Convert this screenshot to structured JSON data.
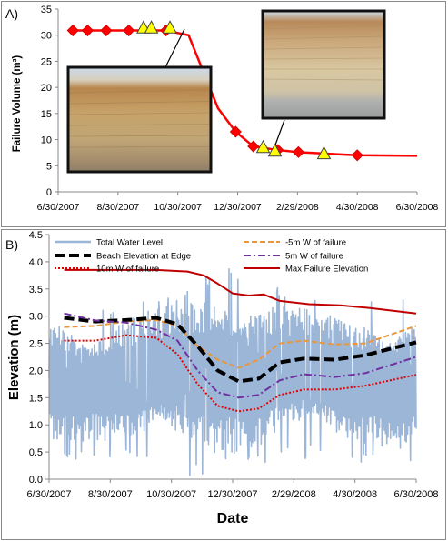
{
  "chart_data": [
    {
      "type": "line",
      "panel_label": "A)",
      "ylabel": "Failure Volume (m³)",
      "xlabel": "",
      "ylim": [
        0,
        35
      ],
      "yticks": [
        0,
        5,
        10,
        15,
        20,
        25,
        30,
        35
      ],
      "xlim": [
        "2007-06-30",
        "2008-06-30"
      ],
      "xticks": [
        "6/30/2007",
        "8/30/2007",
        "10/30/2007",
        "12/30/2007",
        "2/29/2008",
        "4/30/2008",
        "6/30/2008"
      ],
      "grid": false,
      "colors": {
        "line": "#ff0000",
        "diamond": "#ff0000",
        "triangle": "#ffff00",
        "triangle_edge": "#444444"
      },
      "series": [
        {
          "marker": "diamond",
          "x": [
            "2007-07-15",
            "2007-07-30",
            "2007-08-18",
            "2007-09-10",
            "2007-10-18",
            "2007-12-28",
            "2008-01-15",
            "2008-02-09",
            "2008-03-01",
            "2008-04-30"
          ],
          "y": [
            30.9,
            30.9,
            30.9,
            30.9,
            30.9,
            11.5,
            8.7,
            8.0,
            7.6,
            7.0
          ]
        },
        {
          "marker": "triangle",
          "x": [
            "2007-09-25",
            "2007-10-03",
            "2007-10-22",
            "2008-01-25",
            "2008-02-06",
            "2008-03-27"
          ],
          "y": [
            31.3,
            31.3,
            31.3,
            8.4,
            7.7,
            7.2
          ]
        },
        {
          "marker": "none",
          "x": [
            "2007-07-15",
            "2007-10-18",
            "2007-11-10",
            "2007-11-25",
            "2007-12-10",
            "2007-12-28",
            "2008-01-15",
            "2008-02-09",
            "2008-03-01",
            "2008-04-30",
            "2008-06-30"
          ],
          "y": [
            30.9,
            30.9,
            30.0,
            23.0,
            16.0,
            11.5,
            8.7,
            8.0,
            7.6,
            7.0,
            6.9
          ]
        }
      ]
    },
    {
      "type": "line",
      "panel_label": "B)",
      "ylabel": "Elevation (m)",
      "xlabel": "Date",
      "ylim": [
        0,
        4.5
      ],
      "yticks": [
        "0.0",
        "0.5",
        "1.0",
        "1.5",
        "2.0",
        "2.5",
        "3.0",
        "3.5",
        "4.0",
        "4.5"
      ],
      "xlim": [
        "2007-06-30",
        "2008-06-30"
      ],
      "xticks": [
        "6/30/2007",
        "8/30/2007",
        "10/30/2007",
        "12/30/2007",
        "2/29/2008",
        "4/30/2008",
        "6/30/2008"
      ],
      "grid": false,
      "legend_placement": "top",
      "series": [
        {
          "name": "Total Water Level",
          "style": "solid-thick",
          "color": "#9cb6d8",
          "envelope": {
            "x": [
              "2007-06-30",
              "2007-08-15",
              "2007-10-01",
              "2007-11-15",
              "2007-12-15",
              "2008-01-20",
              "2008-03-01",
              "2008-04-15",
              "2008-05-20",
              "2008-06-30"
            ],
            "low": [
              0.6,
              0.7,
              0.5,
              0.3,
              0.4,
              0.5,
              0.7,
              0.5,
              0.6,
              0.5
            ],
            "high": [
              3.1,
              3.0,
              3.1,
              3.3,
              3.7,
              3.6,
              3.2,
              3.0,
              3.1,
              3.3
            ]
          }
        },
        {
          "name": "-5m W of failure",
          "style": "dashed",
          "color": "#e9963c",
          "x": [
            "2007-07-15",
            "2007-08-15",
            "2007-09-15",
            "2007-10-15",
            "2007-11-05",
            "2007-11-25",
            "2007-12-15",
            "2008-01-05",
            "2008-01-25",
            "2008-02-15",
            "2008-03-10",
            "2008-04-10",
            "2008-05-10",
            "2008-06-30"
          ],
          "y": [
            2.8,
            2.82,
            2.9,
            2.93,
            2.82,
            2.45,
            2.2,
            2.05,
            2.2,
            2.5,
            2.55,
            2.48,
            2.5,
            2.82
          ]
        },
        {
          "name": "Beach Elevation at Edge",
          "style": "dashed-thick",
          "color": "#000000",
          "x": [
            "2007-07-15",
            "2007-08-15",
            "2007-09-15",
            "2007-10-15",
            "2007-11-05",
            "2007-11-25",
            "2007-12-15",
            "2008-01-05",
            "2008-01-25",
            "2008-02-15",
            "2008-03-10",
            "2008-04-10",
            "2008-05-10",
            "2008-06-30"
          ],
          "y": [
            2.97,
            2.9,
            2.93,
            2.97,
            2.85,
            2.45,
            2.0,
            1.8,
            1.85,
            2.15,
            2.22,
            2.2,
            2.28,
            2.52
          ]
        },
        {
          "name": "5m W of failure",
          "style": "dash-dot",
          "color": "#7030a0",
          "x": [
            "2007-07-15",
            "2007-08-15",
            "2007-09-15",
            "2007-10-15",
            "2007-11-05",
            "2007-11-25",
            "2007-12-15",
            "2008-01-05",
            "2008-01-25",
            "2008-02-15",
            "2008-03-10",
            "2008-04-10",
            "2008-05-10",
            "2008-06-30"
          ],
          "y": [
            3.05,
            2.92,
            2.88,
            2.75,
            2.55,
            2.0,
            1.6,
            1.5,
            1.55,
            1.82,
            1.93,
            1.88,
            1.95,
            2.25
          ]
        },
        {
          "name": "10m W of failure",
          "style": "dotted",
          "color": "#e00000",
          "x": [
            "2007-07-15",
            "2007-08-15",
            "2007-09-15",
            "2007-10-15",
            "2007-11-05",
            "2007-11-25",
            "2007-12-15",
            "2008-01-05",
            "2008-01-25",
            "2008-02-15",
            "2008-03-10",
            "2008-04-10",
            "2008-05-10",
            "2008-06-30"
          ],
          "y": [
            2.55,
            2.55,
            2.65,
            2.6,
            2.3,
            1.75,
            1.35,
            1.25,
            1.3,
            1.55,
            1.65,
            1.65,
            1.72,
            1.92
          ]
        },
        {
          "name": "Max Failure Elevation",
          "style": "solid",
          "color": "#c00000",
          "x": [
            "2007-07-15",
            "2007-08-15",
            "2007-09-15",
            "2007-10-15",
            "2007-11-15",
            "2007-12-01",
            "2007-12-15",
            "2007-12-30",
            "2008-01-15",
            "2008-01-30",
            "2008-02-15",
            "2008-03-15",
            "2008-04-15",
            "2008-05-15",
            "2008-06-30"
          ],
          "y": [
            3.85,
            3.85,
            3.85,
            3.85,
            3.82,
            3.75,
            3.6,
            3.42,
            3.38,
            3.4,
            3.28,
            3.22,
            3.2,
            3.15,
            3.05
          ]
        }
      ]
    }
  ]
}
